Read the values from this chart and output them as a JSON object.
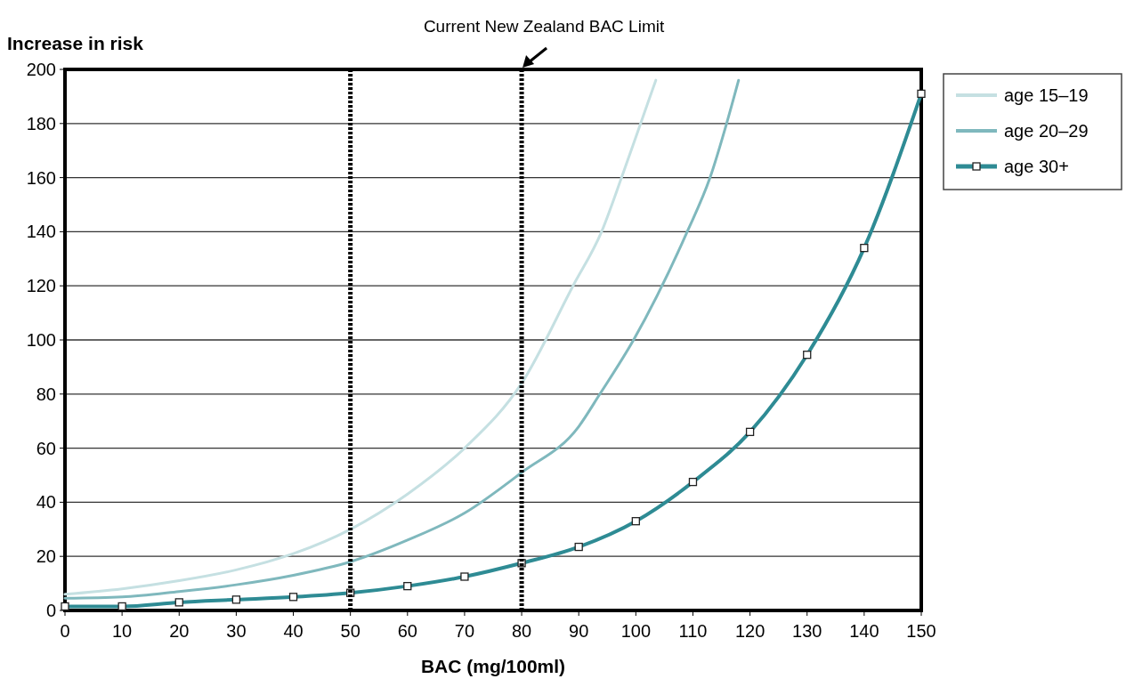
{
  "chart_data": {
    "type": "line",
    "ylabel": "Increase in risk",
    "xlabel": "BAC (mg/100ml)",
    "xlim": [
      0,
      150
    ],
    "xticks": [
      0,
      10,
      20,
      30,
      40,
      50,
      60,
      70,
      80,
      90,
      100,
      110,
      120,
      130,
      140,
      150
    ],
    "ylim": [
      0,
      200
    ],
    "yticks": [
      0,
      20,
      40,
      60,
      80,
      100,
      120,
      140,
      160,
      180,
      200
    ],
    "grid": "y",
    "legend": "right",
    "line_style": "solid",
    "ref_lines": [
      {
        "axis": "x",
        "value": 50,
        "color": "#000000",
        "line_style": "dotted"
      },
      {
        "axis": "x",
        "value": 80,
        "color": "#000000",
        "line_style": "dotted",
        "label": "Current New Zealand BAC Limit"
      }
    ],
    "series": [
      {
        "name": "age 15–19",
        "color": "#c5e0e2",
        "marker": "none",
        "x": [
          0,
          10,
          20,
          30,
          40,
          50,
          60,
          70,
          80,
          89,
          94,
          97.5,
          100.5,
          103.5
        ],
        "values": [
          6,
          8,
          11,
          15,
          21,
          30,
          43,
          60,
          84,
          120,
          140,
          160,
          178,
          196
        ]
      },
      {
        "name": "age 20–29",
        "color": "#7fb8bd",
        "marker": "none",
        "x": [
          0,
          10,
          20,
          30,
          40,
          50,
          60,
          70,
          80,
          90,
          93.7,
          99.6,
          109,
          113,
          115.9,
          118
        ],
        "values": [
          4.5,
          5,
          7,
          9.5,
          13,
          18,
          26,
          36,
          51,
          68,
          80,
          100,
          140,
          160,
          180,
          196
        ]
      },
      {
        "name": "age 30+",
        "color": "#2e8b94",
        "marker": "square",
        "x": [
          0,
          10,
          20,
          30,
          40,
          50,
          60,
          70,
          80,
          90,
          100,
          110,
          120,
          130,
          140,
          150
        ],
        "values": [
          1.5,
          1.5,
          3,
          4,
          5,
          6.5,
          9,
          12.5,
          17.5,
          23.5,
          33,
          47.5,
          66,
          94.5,
          134,
          191
        ]
      }
    ]
  }
}
